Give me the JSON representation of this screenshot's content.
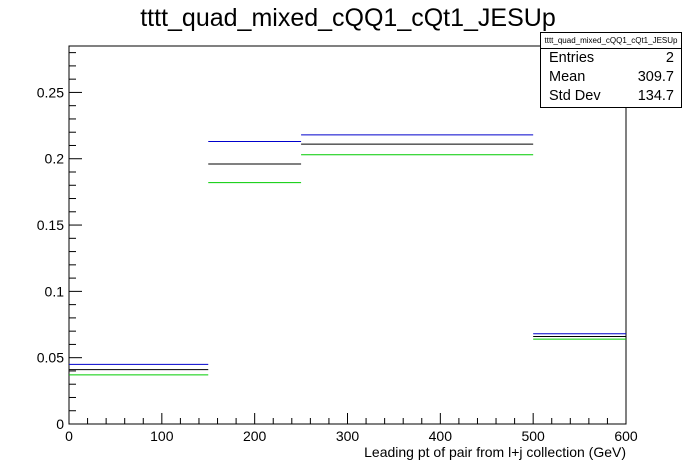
{
  "chart_data": {
    "type": "step",
    "title": "tttt_quad_mixed_cQQ1_cQt1_JESUp",
    "xlabel": "Leading pt of pair from l+j collection (GeV)",
    "ylabel": "",
    "xlim": [
      0,
      600
    ],
    "ylim": [
      0,
      0.285
    ],
    "x_ticks": [
      0,
      100,
      200,
      300,
      400,
      500,
      600
    ],
    "y_ticks": [
      0,
      0.05,
      0.1,
      0.15,
      0.2,
      0.25
    ],
    "x_tick_labels": [
      "0",
      "100",
      "200",
      "300",
      "400",
      "500",
      "600"
    ],
    "y_tick_labels": [
      "0",
      "0.05",
      "0.1",
      "0.15",
      "0.2",
      "0.25"
    ],
    "bin_edges": [
      0,
      150,
      250,
      500,
      600
    ],
    "series": [
      {
        "color": "#0000cc",
        "values": [
          0.045,
          0.213,
          0.218,
          0.068
        ]
      },
      {
        "color": "#000000",
        "values": [
          0.041,
          0.196,
          0.211,
          0.066
        ]
      },
      {
        "color": "#00cc00",
        "values": [
          0.037,
          0.182,
          0.203,
          0.064
        ]
      }
    ],
    "grid": false,
    "stats_box": {
      "name": "tttt_quad_mixed_cQQ1_cQt1_JESUp",
      "rows": [
        {
          "label": "Entries",
          "value": "2"
        },
        {
          "label": "Mean",
          "value": "309.7"
        },
        {
          "label": "Std Dev",
          "value": "134.7"
        }
      ]
    }
  }
}
